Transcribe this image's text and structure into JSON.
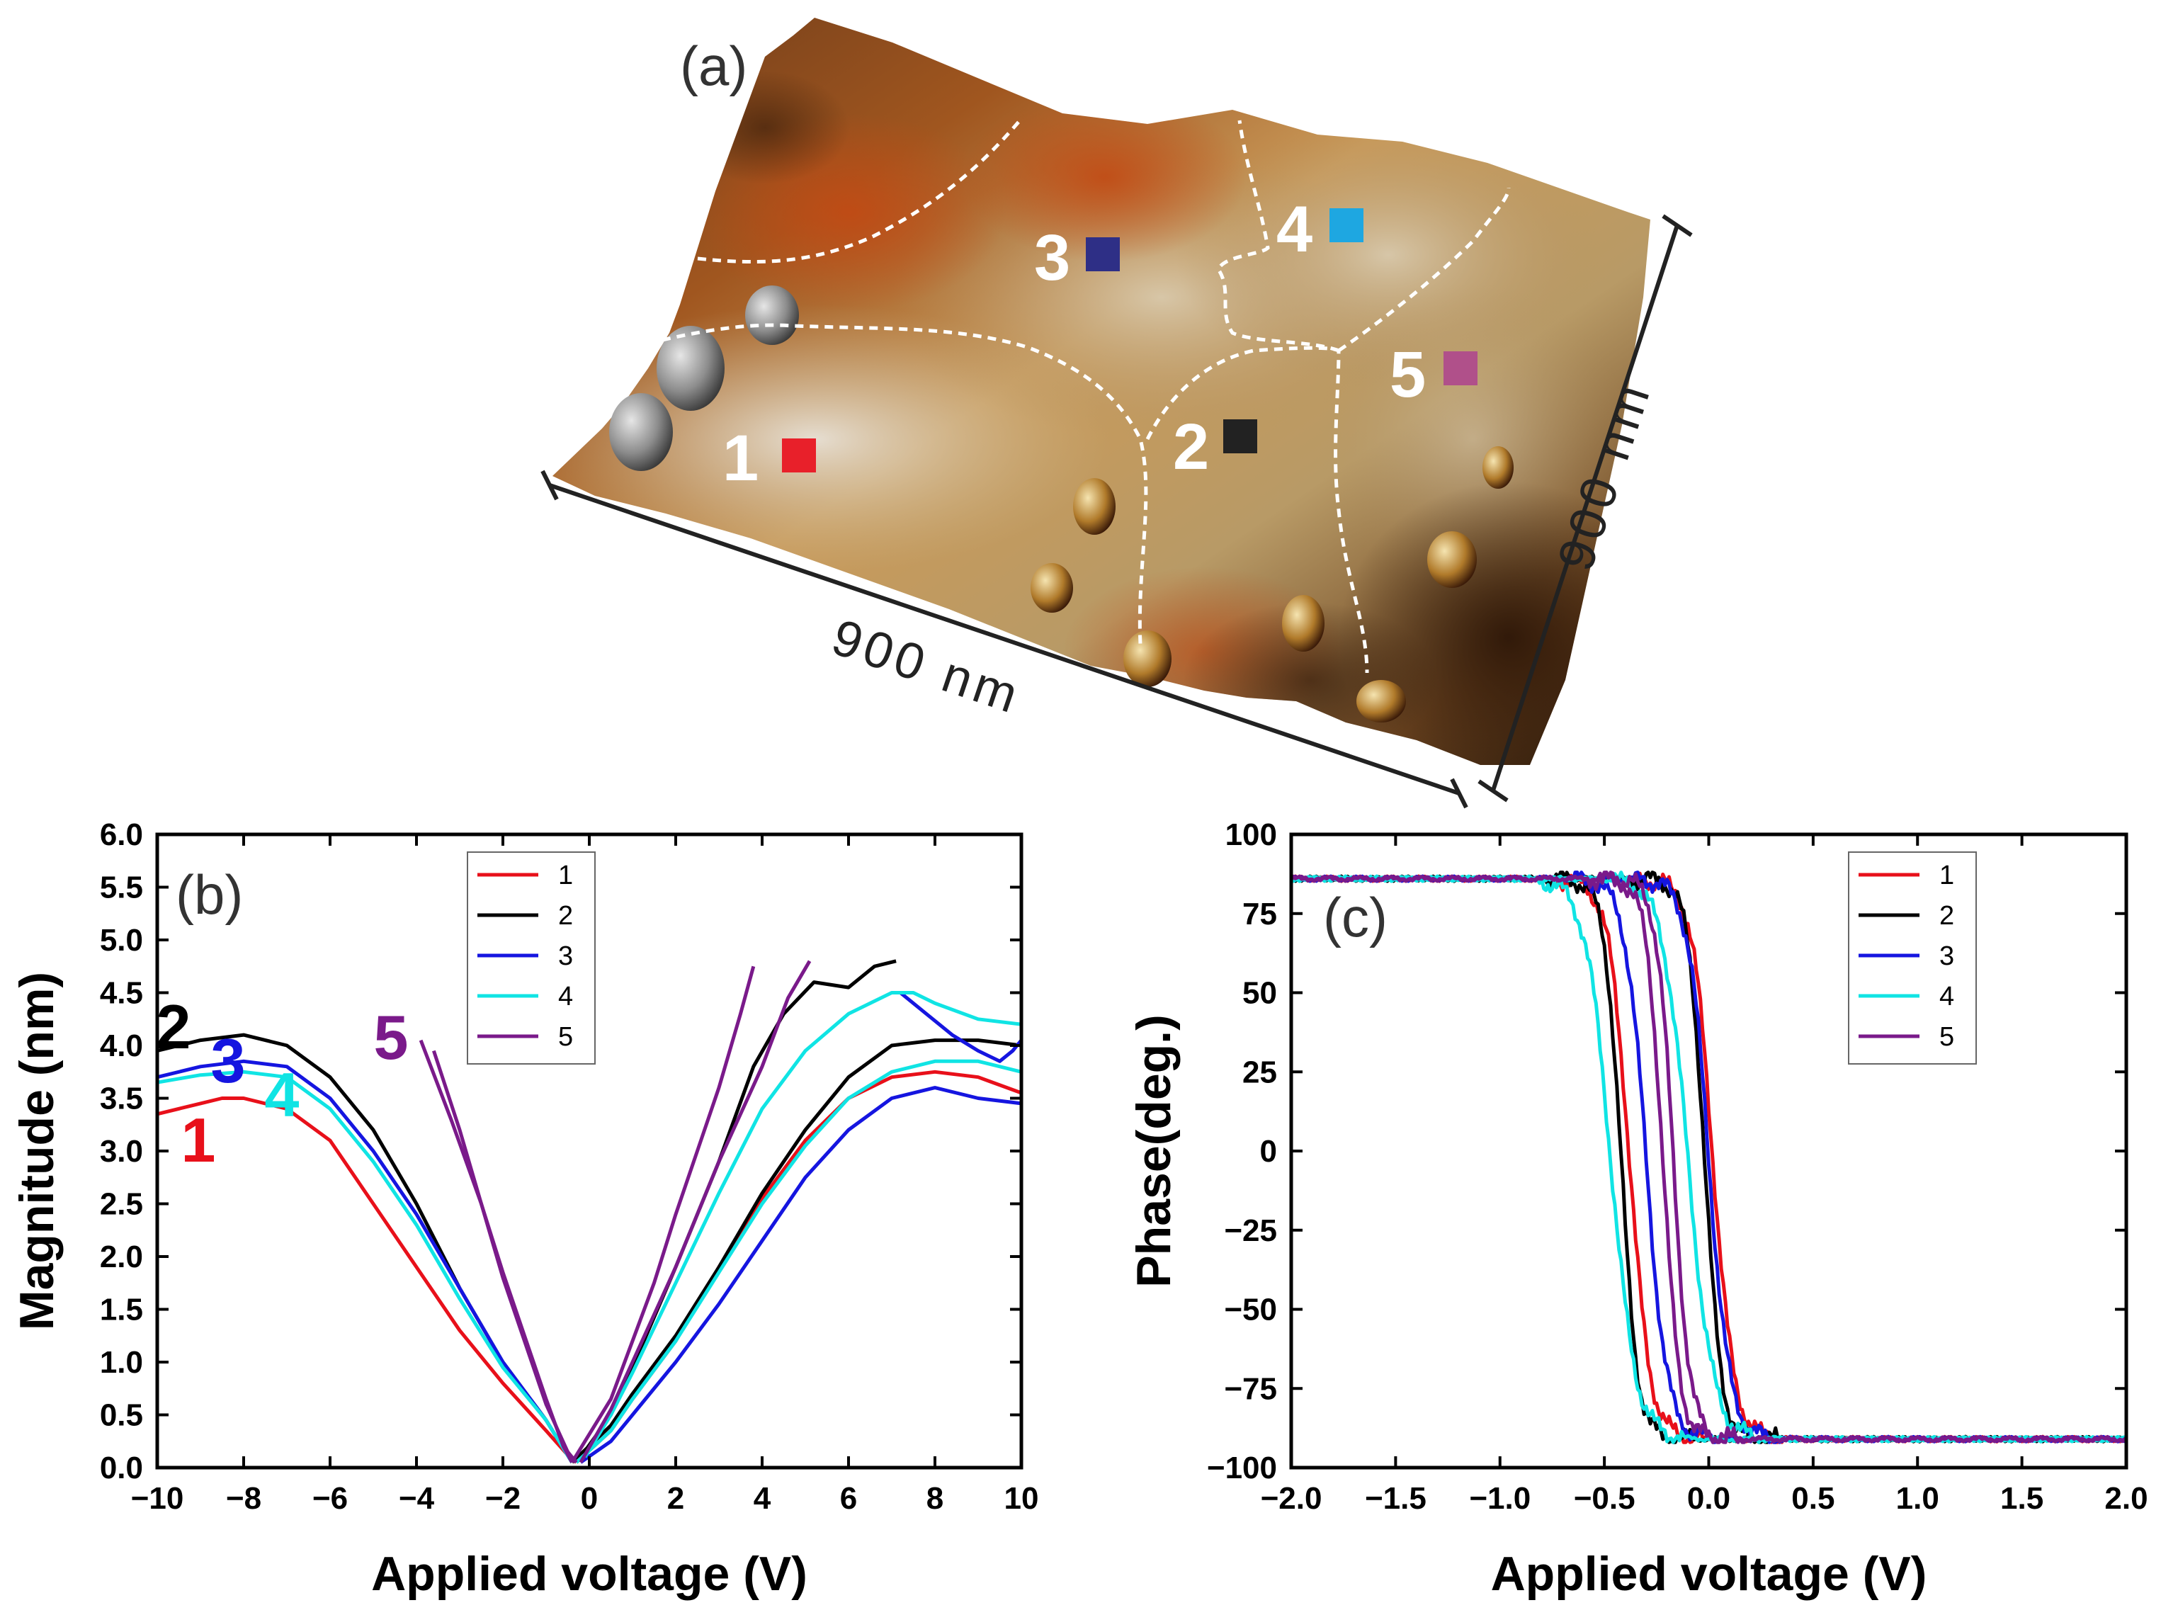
{
  "figure": {
    "panel_a": {
      "label": "(a)",
      "scale_x": "900 nm",
      "scale_y": "900 nm",
      "regions": [
        {
          "label": "1",
          "color": "#e8202a"
        },
        {
          "label": "2",
          "color": "#222222"
        },
        {
          "label": "3",
          "color": "#2e2f86"
        },
        {
          "label": "4",
          "color": "#1ea7e1"
        },
        {
          "label": "5",
          "color": "#b0508a"
        }
      ]
    }
  },
  "chart_data": [
    {
      "panel": "(b)",
      "type": "line",
      "xlabel": "Applied voltage (V)",
      "ylabel": "Magnitude (nm)",
      "xlim": [
        -10,
        10
      ],
      "ylim": [
        0,
        6.0
      ],
      "xticks": [
        -10,
        -8,
        -6,
        -4,
        -2,
        0,
        2,
        4,
        6,
        8,
        10
      ],
      "xtick_labels": [
        "−10",
        "−8",
        "−6",
        "−4",
        "−2",
        "0",
        "2",
        "4",
        "6",
        "8",
        "10"
      ],
      "yticks": [
        0,
        0.5,
        1,
        1.5,
        2,
        2.5,
        3,
        3.5,
        4,
        4.5,
        5,
        5.5,
        6
      ],
      "ytick_labels": [
        "0.0",
        "0.5",
        "1.0",
        "1.5",
        "2.0",
        "2.5",
        "3.0",
        "3.5",
        "4.0",
        "4.5",
        "5.0",
        "5.5",
        "6.0"
      ],
      "legend_position": "top-center",
      "curve_labels": [
        "1",
        "2",
        "3",
        "4",
        "5"
      ],
      "series": [
        {
          "name": "1",
          "color": "#e8101a",
          "branches": [
            {
              "x": [
                -10,
                -9,
                -8.5,
                -8,
                -7,
                -6,
                -5,
                -4,
                -3,
                -2,
                -1,
                -0.5,
                -0.3
              ],
              "y": [
                3.35,
                3.45,
                3.5,
                3.5,
                3.4,
                3.1,
                2.5,
                1.9,
                1.3,
                0.8,
                0.35,
                0.12,
                0.05
              ]
            },
            {
              "x": [
                -0.3,
                0.5,
                1,
                2,
                3,
                4,
                5,
                6,
                7,
                8,
                9,
                10
              ],
              "y": [
                0.05,
                0.35,
                0.65,
                1.2,
                1.9,
                2.55,
                3.1,
                3.5,
                3.7,
                3.75,
                3.7,
                3.55
              ]
            }
          ]
        },
        {
          "name": "2",
          "color": "#000000",
          "branches": [
            {
              "x": [
                -10,
                -9,
                -8,
                -7,
                -6,
                -5,
                -4,
                -3,
                -2,
                -1,
                -0.4
              ],
              "y": [
                3.95,
                4.05,
                4.1,
                4.0,
                3.7,
                3.2,
                2.5,
                1.7,
                1.0,
                0.45,
                0.05
              ]
            },
            {
              "x": [
                -0.4,
                0.5,
                1,
                2,
                3,
                4,
                5,
                6,
                7,
                8,
                9,
                10
              ],
              "y": [
                0.05,
                0.4,
                0.7,
                1.25,
                1.9,
                2.6,
                3.2,
                3.7,
                4.0,
                4.05,
                4.05,
                4.0
              ]
            },
            {
              "x": [
                -0.2,
                0.5,
                1,
                2,
                3,
                3.8,
                4.5,
                5.2,
                6,
                6.6,
                7.1
              ],
              "y": [
                0.1,
                0.5,
                0.95,
                1.9,
                2.9,
                3.8,
                4.3,
                4.6,
                4.55,
                4.75,
                4.8
              ]
            }
          ]
        },
        {
          "name": "3",
          "color": "#1515e0",
          "branches": [
            {
              "x": [
                -10,
                -9,
                -8,
                -7,
                -6,
                -5,
                -4,
                -3,
                -2,
                -1,
                -0.4
              ],
              "y": [
                3.7,
                3.8,
                3.85,
                3.8,
                3.5,
                3.0,
                2.4,
                1.7,
                1.0,
                0.45,
                0.05
              ]
            },
            {
              "x": [
                -0.2,
                0.5,
                1,
                2,
                3,
                4,
                5,
                6,
                7,
                8,
                9,
                10
              ],
              "y": [
                0.05,
                0.25,
                0.5,
                1.0,
                1.55,
                2.15,
                2.75,
                3.2,
                3.5,
                3.6,
                3.5,
                3.45
              ]
            },
            {
              "x": [
                7.2,
                7.8,
                8.4,
                9,
                9.5,
                9.8,
                10
              ],
              "y": [
                4.5,
                4.3,
                4.1,
                3.95,
                3.85,
                3.95,
                4.05
              ]
            }
          ]
        },
        {
          "name": "4",
          "color": "#10e4e4",
          "branches": [
            {
              "x": [
                -10,
                -9,
                -8,
                -7,
                -6,
                -5,
                -4,
                -3,
                -2,
                -1,
                -0.4
              ],
              "y": [
                3.65,
                3.72,
                3.75,
                3.7,
                3.4,
                2.9,
                2.3,
                1.6,
                0.95,
                0.45,
                0.05
              ]
            },
            {
              "x": [
                -0.3,
                0.5,
                1,
                2,
                3,
                4,
                5,
                6,
                7,
                8,
                9,
                10
              ],
              "y": [
                0.05,
                0.35,
                0.65,
                1.2,
                1.85,
                2.5,
                3.05,
                3.5,
                3.75,
                3.85,
                3.85,
                3.75
              ]
            },
            {
              "x": [
                -0.1,
                0.5,
                1,
                2,
                3,
                4,
                5,
                6,
                7,
                7.5,
                8,
                9,
                10
              ],
              "y": [
                0.1,
                0.5,
                0.9,
                1.75,
                2.6,
                3.4,
                3.95,
                4.3,
                4.5,
                4.5,
                4.4,
                4.25,
                4.2
              ]
            }
          ]
        },
        {
          "name": "5",
          "color": "#7a1a8a",
          "branches": [
            {
              "x": [
                -3.6,
                -3,
                -2.5,
                -2,
                -1.5,
                -1,
                -0.5,
                -0.3
              ],
              "y": [
                3.95,
                3.2,
                2.5,
                1.8,
                1.2,
                0.6,
                0.15,
                0.05
              ]
            },
            {
              "x": [
                -3.9,
                -3.2,
                -2.5,
                -2,
                -1.5,
                -1,
                -0.6,
                -0.4
              ],
              "y": [
                4.05,
                3.3,
                2.5,
                1.85,
                1.25,
                0.65,
                0.2,
                0.05
              ]
            },
            {
              "x": [
                -0.4,
                0.5,
                1,
                1.5,
                2,
                2.5,
                3,
                3.5,
                3.8
              ],
              "y": [
                0.05,
                0.65,
                1.2,
                1.75,
                2.4,
                3.0,
                3.6,
                4.3,
                4.75
              ]
            },
            {
              "x": [
                -0.2,
                0.5,
                1,
                2,
                3,
                4,
                4.6,
                5.1
              ],
              "y": [
                0.05,
                0.55,
                1.0,
                1.9,
                2.9,
                3.8,
                4.45,
                4.8
              ]
            }
          ]
        }
      ]
    },
    {
      "panel": "(c)",
      "type": "line",
      "xlabel": "Applied voltage (V)",
      "ylabel": "Phase(deg.)",
      "xlim": [
        -2.0,
        2.0
      ],
      "ylim": [
        -100,
        100
      ],
      "xticks": [
        -2,
        -1.5,
        -1,
        -0.5,
        0,
        0.5,
        1,
        1.5,
        2
      ],
      "xtick_labels": [
        "−2.0",
        "−1.5",
        "−1.0",
        "−0.5",
        "0.0",
        "0.5",
        "1.0",
        "1.5",
        "2.0"
      ],
      "yticks": [
        100,
        75,
        50,
        25,
        0,
        -25,
        -50,
        -75,
        -100
      ],
      "ytick_labels": [
        "100",
        "75",
        "50",
        "25",
        "0",
        "−25",
        "−50",
        "−75",
        "−100"
      ],
      "legend_position": "top-right",
      "series": [
        {
          "name": "1",
          "color": "#e8101a",
          "v_down": -0.38,
          "v_up": 0.02,
          "width": 0.05
        },
        {
          "name": "2",
          "color": "#000000",
          "v_down": -0.42,
          "v_up": -0.02,
          "width": 0.04
        },
        {
          "name": "3",
          "color": "#1515e0",
          "v_down": -0.3,
          "v_up": 0.0,
          "width": 0.05
        },
        {
          "name": "4",
          "color": "#10e4e4",
          "v_down": -0.47,
          "v_up": -0.1,
          "width": 0.06
        },
        {
          "name": "5",
          "color": "#7a1a8a",
          "v_down": -0.22,
          "v_up": -0.17,
          "width": 0.04
        }
      ]
    }
  ]
}
